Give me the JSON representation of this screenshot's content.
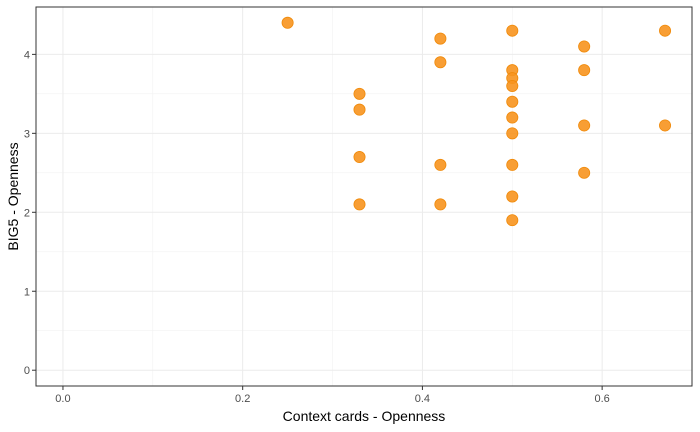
{
  "chart_data": {
    "type": "scatter",
    "title": "",
    "xlabel": "Context cards - Openness",
    "ylabel": "BIG5 - Openness",
    "xlim": [
      -0.03,
      0.7
    ],
    "ylim": [
      -0.2,
      4.6
    ],
    "x_ticks": [
      0.0,
      0.2,
      0.4,
      0.6
    ],
    "x_tick_labels": [
      "0.0",
      "0.2",
      "0.4",
      "0.6"
    ],
    "y_ticks": [
      0,
      1,
      2,
      3,
      4
    ],
    "y_tick_labels": [
      "0",
      "1",
      "2",
      "3",
      "4"
    ],
    "grid": true,
    "point_color": "#f7931e",
    "points": [
      {
        "x": 0.25,
        "y": 4.4
      },
      {
        "x": 0.33,
        "y": 3.5
      },
      {
        "x": 0.33,
        "y": 3.3
      },
      {
        "x": 0.33,
        "y": 2.7
      },
      {
        "x": 0.33,
        "y": 2.1
      },
      {
        "x": 0.42,
        "y": 4.2
      },
      {
        "x": 0.42,
        "y": 3.9
      },
      {
        "x": 0.42,
        "y": 2.6
      },
      {
        "x": 0.42,
        "y": 2.1
      },
      {
        "x": 0.5,
        "y": 4.3
      },
      {
        "x": 0.5,
        "y": 3.8
      },
      {
        "x": 0.5,
        "y": 3.7
      },
      {
        "x": 0.5,
        "y": 3.6
      },
      {
        "x": 0.5,
        "y": 3.4
      },
      {
        "x": 0.5,
        "y": 3.2
      },
      {
        "x": 0.5,
        "y": 3.0
      },
      {
        "x": 0.5,
        "y": 2.6
      },
      {
        "x": 0.5,
        "y": 2.2
      },
      {
        "x": 0.5,
        "y": 1.9
      },
      {
        "x": 0.58,
        "y": 4.1
      },
      {
        "x": 0.58,
        "y": 3.8
      },
      {
        "x": 0.58,
        "y": 3.1
      },
      {
        "x": 0.58,
        "y": 2.5
      },
      {
        "x": 0.67,
        "y": 4.3
      },
      {
        "x": 0.67,
        "y": 3.1
      }
    ]
  }
}
